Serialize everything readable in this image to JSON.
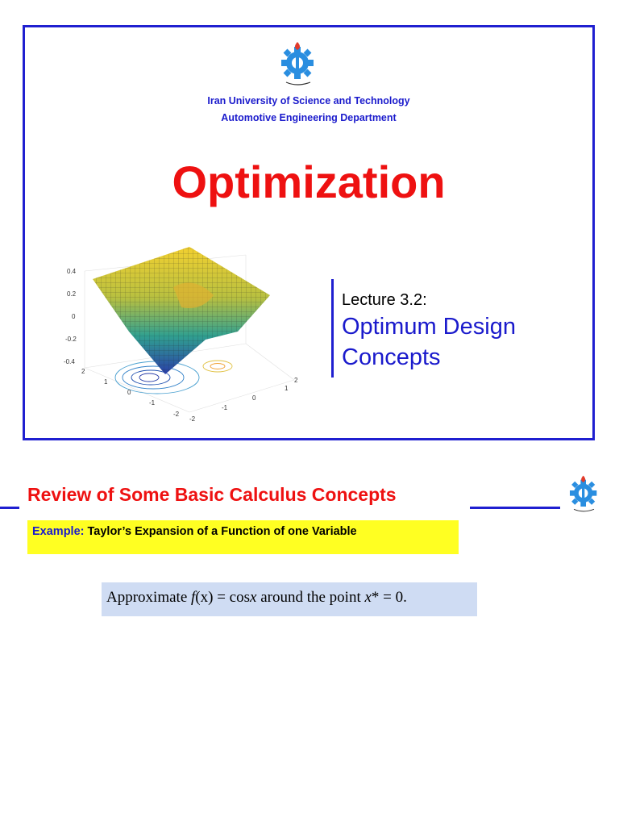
{
  "slide1": {
    "university": "Iran University of Science and Technology",
    "department": "Automotive Engineering Department",
    "course_title": "Optimization",
    "lecture_number": "Lecture 3.2:",
    "lecture_topic_line1": "Optimum Design",
    "lecture_topic_line2": "Concepts",
    "plot": {
      "z_ticks": [
        "0.4",
        "0.2",
        "0",
        "-0.2",
        "-0.4"
      ],
      "y_ticks": [
        "2",
        "1",
        "0",
        "-1",
        "-2"
      ],
      "x_ticks": [
        "-2",
        "-1",
        "0",
        "1",
        "2"
      ]
    }
  },
  "slide2": {
    "section_title": "Review of Some Basic Calculus Concepts",
    "example_label": "Example:",
    "example_text": " Taylor’s Expansion of a Function of one Variable",
    "approx_prefix": "Approximate ",
    "approx_fx": "f",
    "approx_x": "(x)",
    "approx_eq": " = cos",
    "approx_var": "x",
    "approx_mid": " around the point ",
    "approx_point": "x",
    "approx_end": "* = 0.",
    "colors": {
      "accent_blue": "#1f1fd0",
      "title_red": "#ee1111",
      "highlight_yellow": "#ffff22",
      "box_blue": "#cfdcf3"
    }
  }
}
